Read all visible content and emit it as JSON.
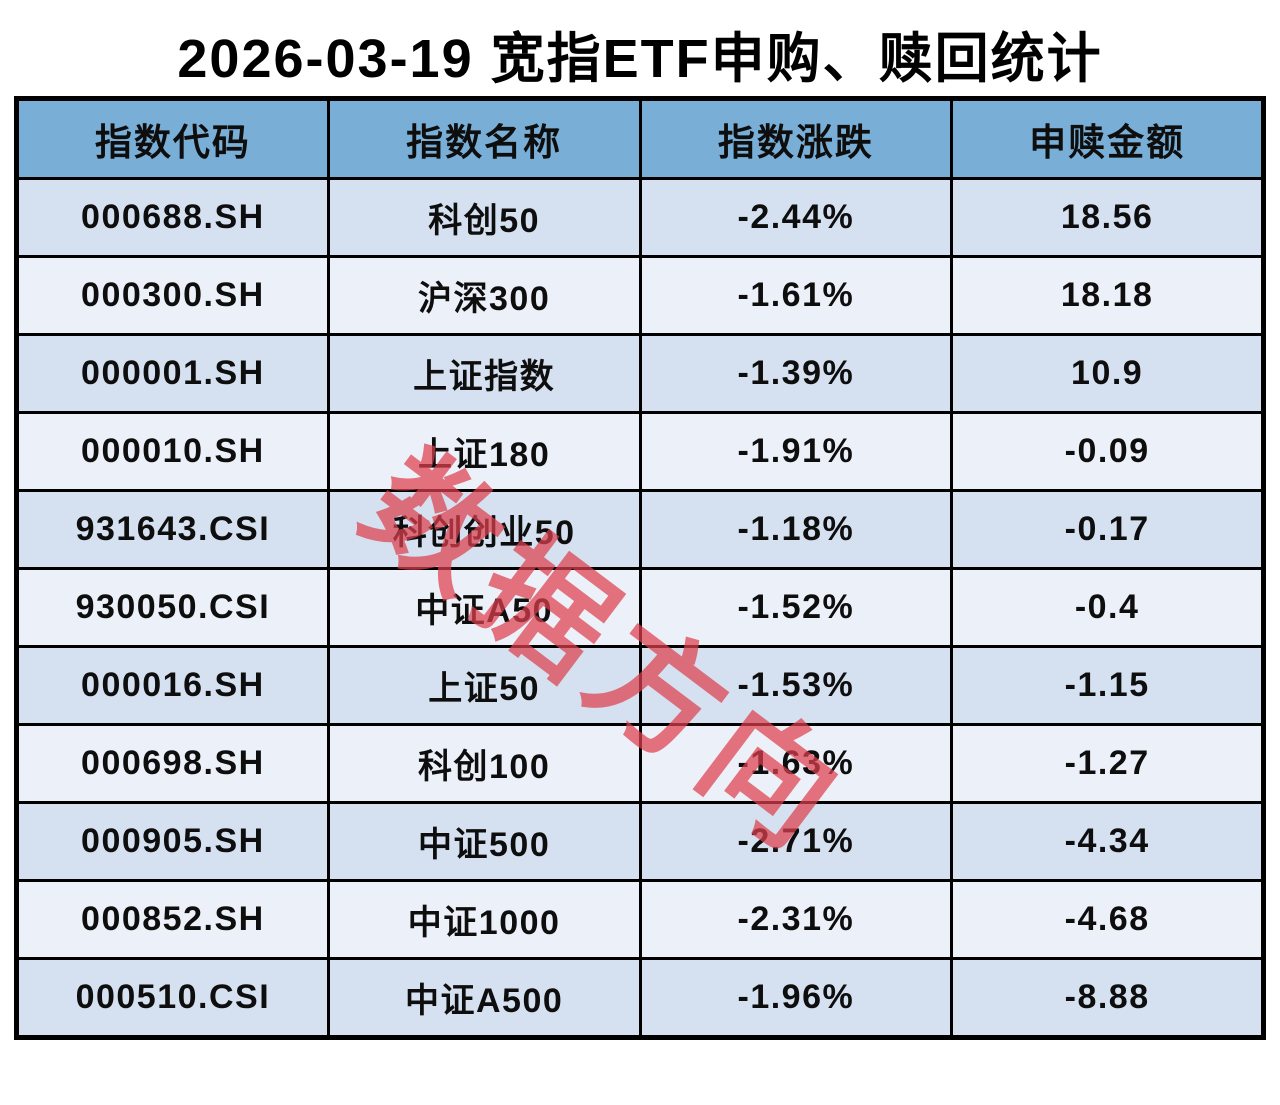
{
  "title": "2026-03-19 宽指ETF申购、赎回统计",
  "watermark": "数据方向",
  "colors": {
    "header_bg": "#79afd7",
    "row_odd_bg": "#d5e1f0",
    "row_even_bg": "#ecf0f8",
    "border": "#000000",
    "watermark_red": "#de404e",
    "text": "#0e0e0e"
  },
  "table": {
    "headers": [
      "指数代码",
      "指数名称",
      "指数涨跌",
      "申赎金额"
    ],
    "rows": [
      {
        "code": "000688.SH",
        "name": "科创50",
        "change": "-2.44%",
        "amount": "18.56"
      },
      {
        "code": "000300.SH",
        "name": "沪深300",
        "change": "-1.61%",
        "amount": "18.18"
      },
      {
        "code": "000001.SH",
        "name": "上证指数",
        "change": "-1.39%",
        "amount": "10.9"
      },
      {
        "code": "000010.SH",
        "name": "上证180",
        "change": "-1.91%",
        "amount": "-0.09"
      },
      {
        "code": "931643.CSI",
        "name": "科创创业50",
        "change": "-1.18%",
        "amount": "-0.17"
      },
      {
        "code": "930050.CSI",
        "name": "中证A50",
        "change": "-1.52%",
        "amount": "-0.4"
      },
      {
        "code": "000016.SH",
        "name": "上证50",
        "change": "-1.53%",
        "amount": "-1.15"
      },
      {
        "code": "000698.SH",
        "name": "科创100",
        "change": "-1.63%",
        "amount": "-1.27"
      },
      {
        "code": "000905.SH",
        "name": "中证500",
        "change": "-2.71%",
        "amount": "-4.34"
      },
      {
        "code": "000852.SH",
        "name": "中证1000",
        "change": "-2.31%",
        "amount": "-4.68"
      },
      {
        "code": "000510.CSI",
        "name": "中证A500",
        "change": "-1.96%",
        "amount": "-8.88"
      }
    ]
  },
  "chart_data": {
    "type": "table",
    "title": "2026-03-19 宽指ETF申购、赎回统计",
    "columns": [
      "指数代码",
      "指数名称",
      "指数涨跌",
      "申赎金额"
    ],
    "categories": [
      "科创50",
      "沪深300",
      "上证指数",
      "上证180",
      "科创创业50",
      "中证A50",
      "上证50",
      "科创100",
      "中证500",
      "中证1000",
      "中证A500"
    ],
    "index_codes": [
      "000688.SH",
      "000300.SH",
      "000001.SH",
      "000010.SH",
      "931643.CSI",
      "930050.CSI",
      "000016.SH",
      "000698.SH",
      "000905.SH",
      "000852.SH",
      "000510.CSI"
    ],
    "series": [
      {
        "name": "指数涨跌(%)",
        "values": [
          -2.44,
          -1.61,
          -1.39,
          -1.91,
          -1.18,
          -1.52,
          -1.53,
          -1.63,
          -2.71,
          -2.31,
          -1.96
        ]
      },
      {
        "name": "申赎金额",
        "values": [
          18.56,
          18.18,
          10.9,
          -0.09,
          -0.17,
          -0.4,
          -1.15,
          -1.27,
          -4.34,
          -4.68,
          -8.88
        ]
      }
    ],
    "layout": {
      "sorted_by": "申赎金额 descending",
      "watermark": "数据方向"
    }
  }
}
